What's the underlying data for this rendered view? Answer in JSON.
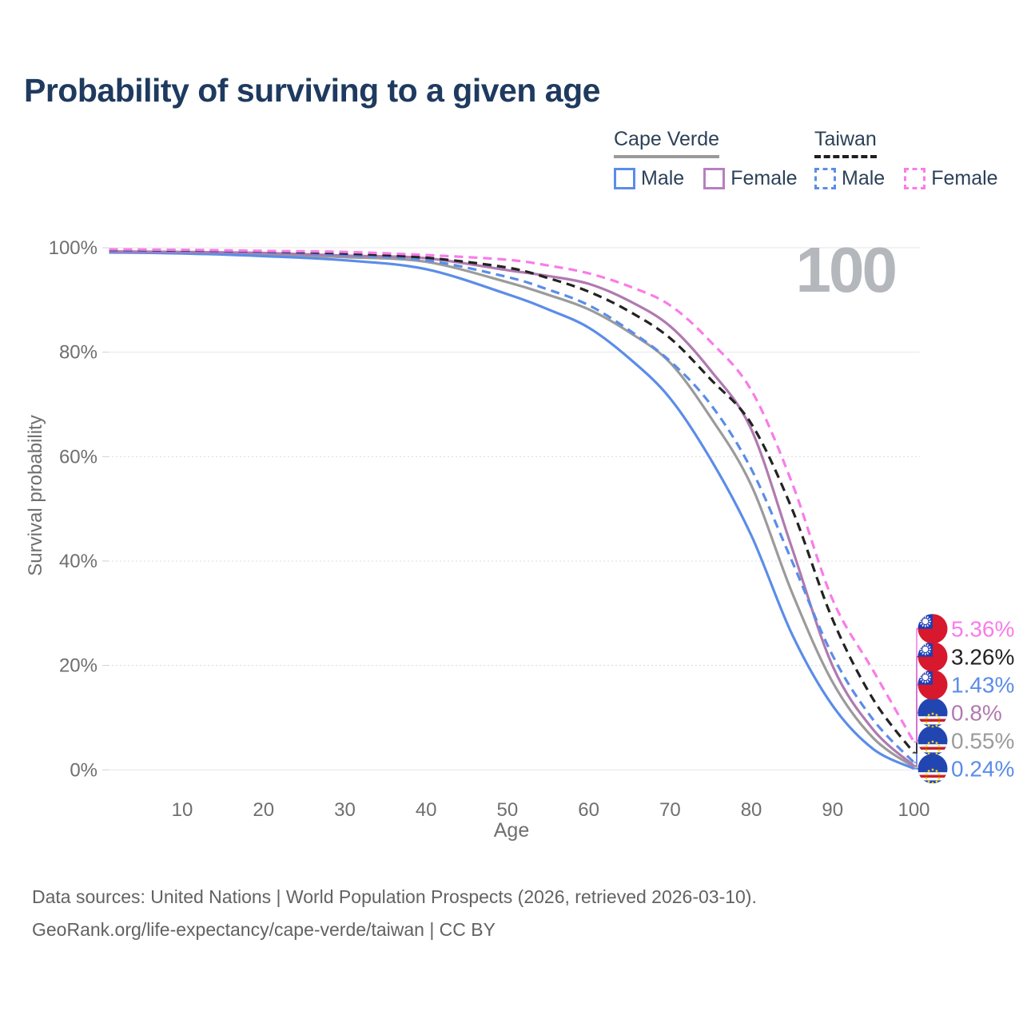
{
  "title": "Probability of surviving to a given age",
  "watermark": "100",
  "legend": {
    "groups": [
      {
        "title": "Cape Verde",
        "line_style": "solid",
        "line_color": "#9A9A9A",
        "items": [
          {
            "label": "Male",
            "color": "#5B8DE8",
            "dash": false
          },
          {
            "label": "Female",
            "color": "#B77FC0",
            "dash": false
          }
        ]
      },
      {
        "title": "Taiwan",
        "line_style": "dashed",
        "line_color": "#1F1F1F",
        "items": [
          {
            "label": "Male",
            "color": "#5B8DE8",
            "dash": true
          },
          {
            "label": "Female",
            "color": "#F87CE9",
            "dash": true
          }
        ]
      }
    ]
  },
  "chart_data": {
    "type": "line",
    "title": "Probability of surviving to a given age",
    "xlabel": "Age",
    "ylabel": "Survival probability",
    "xlim": [
      0,
      108
    ],
    "ylim": [
      0,
      100
    ],
    "grid": "horizontal",
    "legend_position": "top-right",
    "x_ticks": [
      10,
      20,
      30,
      40,
      50,
      60,
      70,
      80,
      90,
      100
    ],
    "y_ticks": [
      0,
      20,
      40,
      60,
      80,
      100
    ],
    "y_tick_suffix": "%",
    "x": [
      1,
      10,
      20,
      30,
      40,
      50,
      55,
      60,
      65,
      70,
      75,
      80,
      85,
      90,
      95,
      100
    ],
    "series": [
      {
        "name": "Cape Verde",
        "sex": "combined",
        "color": "#9B9B9B",
        "dash": false,
        "flag": "cape-verde",
        "end_label": "0.55%",
        "values": [
          99.2,
          99.0,
          98.7,
          98.2,
          97.3,
          93.4,
          91.0,
          88.2,
          83.8,
          78.0,
          67.5,
          54.5,
          34.0,
          16.8,
          6.1,
          0.55
        ]
      },
      {
        "name": "Cape Verde Male",
        "sex": "male",
        "color": "#5B8DE8",
        "dash": false,
        "flag": "cape-verde",
        "end_label": "0.24%",
        "values": [
          99.1,
          98.9,
          98.4,
          97.6,
          95.9,
          91.1,
          88.2,
          84.7,
          78.8,
          71.2,
          59.5,
          44.9,
          26.0,
          12.3,
          4.0,
          0.24
        ]
      },
      {
        "name": "Cape Verde Female",
        "sex": "female",
        "color": "#B07AB0",
        "dash": false,
        "flag": "cape-verde",
        "end_label": "0.8%",
        "values": [
          99.3,
          99.2,
          99.0,
          98.5,
          98.0,
          95.7,
          94.6,
          93.1,
          89.8,
          85.0,
          76.5,
          65.2,
          42.5,
          19.9,
          7.7,
          0.8
        ]
      },
      {
        "name": "Taiwan Male",
        "sex": "male",
        "color": "#5B8DE8",
        "dash": true,
        "flag": "taiwan",
        "end_label": "1.43%",
        "values": [
          99.5,
          99.4,
          99.2,
          98.6,
          97.6,
          94.4,
          92.0,
          89.0,
          84.2,
          78.3,
          70.0,
          57.6,
          40.0,
          21.9,
          9.6,
          1.43
        ]
      },
      {
        "name": "Taiwan",
        "sex": "combined",
        "color": "#232323",
        "dash": true,
        "flag": "taiwan",
        "end_label": "3.26%",
        "values": [
          99.6,
          99.5,
          99.3,
          98.9,
          98.1,
          96.2,
          94.2,
          91.6,
          87.8,
          82.7,
          74.8,
          66.3,
          50.0,
          28.8,
          13.5,
          3.26
        ]
      },
      {
        "name": "Taiwan Female",
        "sex": "female",
        "color": "#F87CE9",
        "dash": true,
        "flag": "taiwan",
        "end_label": "5.36%",
        "values": [
          99.7,
          99.6,
          99.4,
          99.2,
          98.6,
          97.7,
          96.6,
          95.1,
          92.6,
          89.0,
          82.0,
          72.7,
          55.0,
          32.6,
          19.0,
          5.36
        ]
      }
    ]
  },
  "footer": {
    "line1": "Data sources: United Nations | World Population Prospects (2026, retrieved 2026-03-10).",
    "line2": "GeoRank.org/life-expectancy/cape-verde/taiwan | CC BY"
  }
}
